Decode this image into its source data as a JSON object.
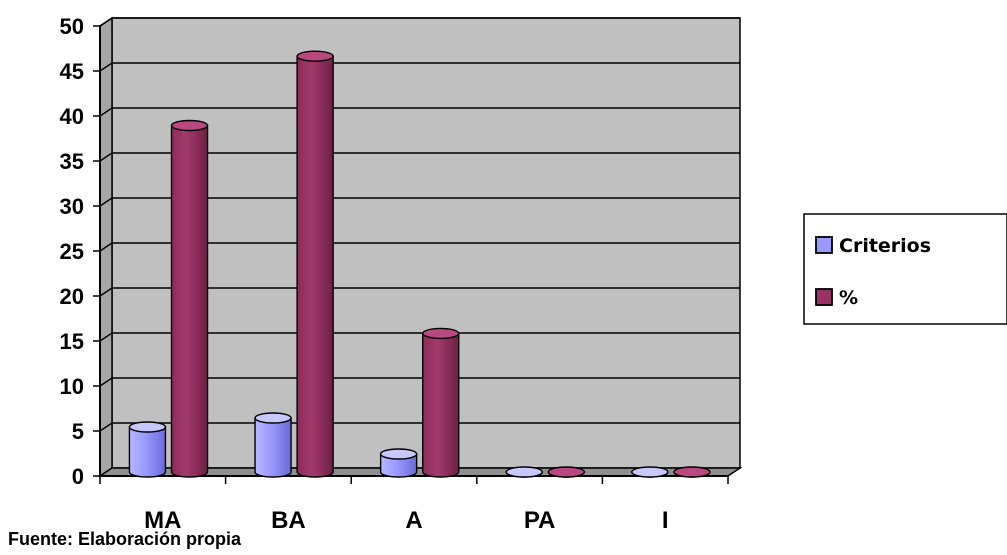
{
  "chart_data": {
    "type": "bar",
    "title": "",
    "xlabel": "",
    "ylabel": "",
    "categories": [
      "MA",
      "BA",
      "A",
      "PA",
      "I"
    ],
    "series": [
      {
        "name": "Criterios",
        "values": [
          5,
          6,
          2,
          0,
          0
        ],
        "color": "#9999FF"
      },
      {
        "name": "%",
        "values": [
          38.5,
          46.2,
          15.4,
          0,
          0
        ],
        "color": "#993366"
      }
    ],
    "ylim": [
      0,
      50
    ],
    "yticks": [
      "0",
      "5",
      "10",
      "15",
      "20",
      "25",
      "30",
      "35",
      "40",
      "45",
      "50"
    ],
    "grid": true,
    "legend": "right",
    "plot_background": "#C0C0C0"
  },
  "source_note": "Fuente: Elaboración propia"
}
